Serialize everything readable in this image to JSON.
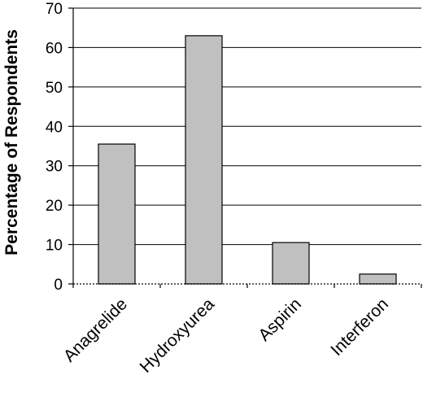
{
  "chart_data": {
    "type": "bar",
    "title": "",
    "xlabel": "",
    "ylabel": "Percentage of Respondents",
    "categories": [
      "Anagrelide",
      "Hydroxyurea",
      "Aspirin",
      "Interferon"
    ],
    "values": [
      35.5,
      63,
      10.5,
      2.5
    ],
    "ylim": [
      0,
      70
    ],
    "yticks": [
      0,
      10,
      20,
      30,
      40,
      50,
      60,
      70
    ],
    "grid": true,
    "legend": "none",
    "colors": {
      "bar": "#c0c0c0",
      "edge": "#000000"
    }
  }
}
